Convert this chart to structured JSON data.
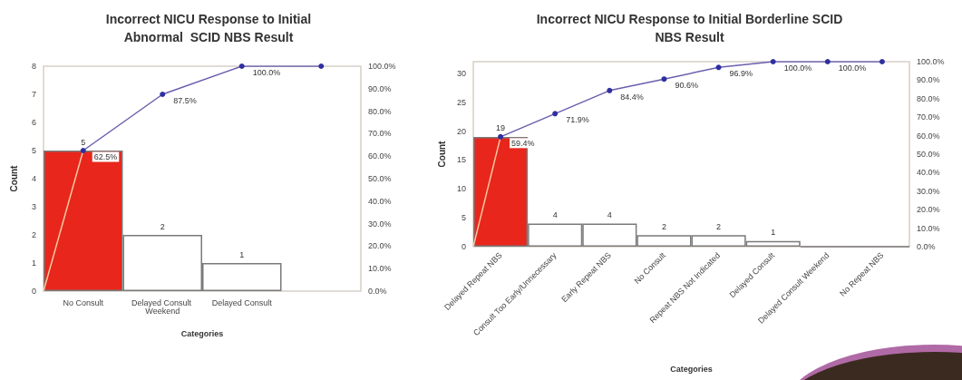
{
  "chart_data": [
    {
      "type": "bar",
      "title": "Incorrect NICU Response to Initial\nAbnormal  SCID NBS Result",
      "xlabel": "Categories",
      "ylabel": "Count",
      "categories": [
        "No Consult",
        "Delayed Consult Weekend",
        "Delayed Consult",
        null
      ],
      "series": [
        {
          "colors": [
            "#e8261c",
            "#ffffff",
            "#ffffff",
            "#ffffff"
          ],
          "values": [
            5,
            2,
            1,
            null
          ],
          "value_labels": [
            "5",
            "2",
            "1",
            null
          ]
        },
        {
          "type": "line",
          "axis": "y2",
          "color": "#6a5fae",
          "marker": "circle",
          "values": [
            62.5,
            87.5,
            100,
            100
          ],
          "value_labels": [
            "62.5%",
            "87.5%",
            "100.0%",
            null
          ]
        }
      ],
      "ylim": [
        0,
        8
      ],
      "yticks": [
        0,
        1,
        2,
        3,
        4,
        5,
        6,
        7,
        8
      ],
      "y2lim": [
        0,
        100
      ],
      "y2ticks": [
        {
          "value": 0,
          "label": "0.0%"
        },
        {
          "value": 10,
          "label": "10.0%"
        },
        {
          "value": 20,
          "label": "20.0%"
        },
        {
          "value": 30,
          "label": "30.0%"
        },
        {
          "value": 40,
          "label": "40.0%"
        },
        {
          "value": 50,
          "label": "50.0%"
        },
        {
          "value": 60,
          "label": "60.0%"
        },
        {
          "value": 70,
          "label": "70.0%"
        },
        {
          "value": 80,
          "label": "80.0%"
        },
        {
          "value": 90,
          "label": "90.0%"
        },
        {
          "value": 100,
          "label": "100.0%"
        }
      ],
      "grid": false
    },
    {
      "type": "bar",
      "title": "Incorrect NICU Response to Initial Borderline SCID\nNBS Result",
      "xlabel": "Categories",
      "ylabel": "Count",
      "categories": [
        "Delayed Repeat NBS",
        "Consult Too Early/Unnecessary",
        "Early Repeat NBS",
        "No Consult",
        "Repeat NBS Not Indicated",
        "Delayed Consult",
        "Delayed Consult Weekend",
        "No Repeat NBS"
      ],
      "series": [
        {
          "colors": [
            "#e8261c",
            "#ffffff",
            "#ffffff",
            "#ffffff",
            "#ffffff",
            "#ffffff",
            "#ffffff",
            "#ffffff"
          ],
          "values": [
            19,
            4,
            4,
            2,
            2,
            1,
            0,
            0
          ],
          "value_labels": [
            "19",
            "4",
            "4",
            "2",
            "2",
            "1",
            null,
            null
          ]
        },
        {
          "type": "line",
          "axis": "y2",
          "color": "#6a5fae",
          "marker": "circle",
          "values": [
            59.4,
            71.9,
            84.4,
            90.6,
            96.9,
            100,
            100,
            100
          ],
          "value_labels": [
            "59.4%",
            "71.9%",
            "84.4%",
            "90.6%",
            "96.9%",
            "100.0%",
            "100.0%",
            null
          ]
        }
      ],
      "ylim": [
        0,
        32
      ],
      "yticks": [
        0,
        5,
        10,
        15,
        20,
        25,
        30
      ],
      "y2lim": [
        0,
        100
      ],
      "y2ticks": [
        {
          "value": 0,
          "label": "0.0%"
        },
        {
          "value": 10,
          "label": "10.0%"
        },
        {
          "value": 20,
          "label": "20.0%"
        },
        {
          "value": 30,
          "label": "30.0%"
        },
        {
          "value": 40,
          "label": "40.0%"
        },
        {
          "value": 50,
          "label": "50.0%"
        },
        {
          "value": 60,
          "label": "60.0%"
        },
        {
          "value": 70,
          "label": "70.0%"
        },
        {
          "value": 80,
          "label": "80.0%"
        },
        {
          "value": 90,
          "label": "90.0%"
        },
        {
          "value": 100,
          "label": "100.0%"
        }
      ],
      "grid": false
    }
  ]
}
